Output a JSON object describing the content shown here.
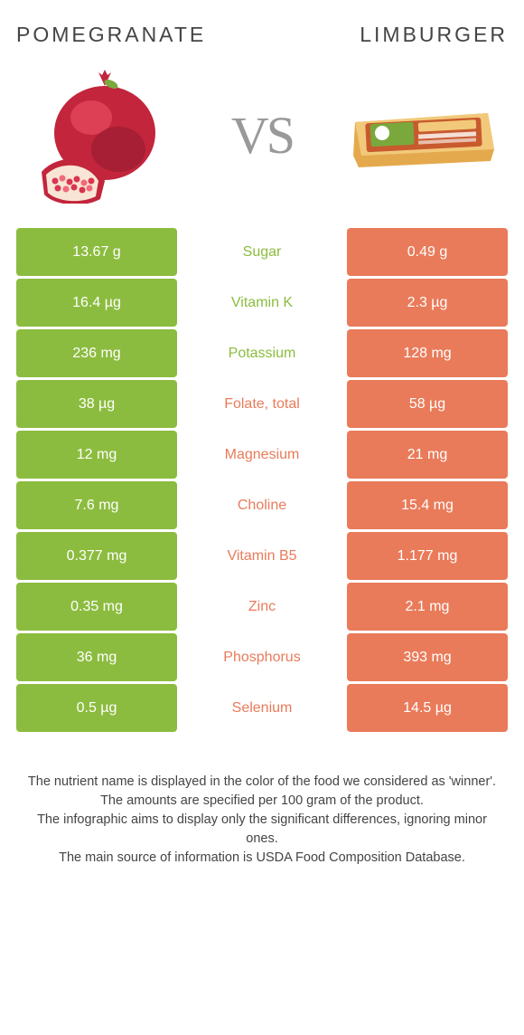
{
  "left_title": "POMEGRANATE",
  "right_title": "LIMBURGER",
  "vs": "VS",
  "colors": {
    "left_bg": "#8cbc3f",
    "right_bg": "#e97b5a",
    "row_gap": "3px"
  },
  "rows": [
    {
      "left": "13.67 g",
      "label": "Sugar",
      "right": "0.49 g",
      "winner": "left"
    },
    {
      "left": "16.4 µg",
      "label": "Vitamin K",
      "right": "2.3 µg",
      "winner": "left"
    },
    {
      "left": "236 mg",
      "label": "Potassium",
      "right": "128 mg",
      "winner": "left"
    },
    {
      "left": "38 µg",
      "label": "Folate, total",
      "right": "58 µg",
      "winner": "right"
    },
    {
      "left": "12 mg",
      "label": "Magnesium",
      "right": "21 mg",
      "winner": "right"
    },
    {
      "left": "7.6 mg",
      "label": "Choline",
      "right": "15.4 mg",
      "winner": "right"
    },
    {
      "left": "0.377 mg",
      "label": "Vitamin B5",
      "right": "1.177 mg",
      "winner": "right"
    },
    {
      "left": "0.35 mg",
      "label": "Zinc",
      "right": "2.1 mg",
      "winner": "right"
    },
    {
      "left": "36 mg",
      "label": "Phosphorus",
      "right": "393 mg",
      "winner": "right"
    },
    {
      "left": "0.5 µg",
      "label": "Selenium",
      "right": "14.5 µg",
      "winner": "right"
    }
  ],
  "footer_lines": [
    "The nutrient name is displayed in the color of the food we considered as 'winner'.",
    "The amounts are specified per 100 gram of the product.",
    "The infographic aims to display only the significant differences, ignoring minor ones.",
    "The main source of information is USDA Food Composition Database."
  ],
  "pomegranate_colors": {
    "body": "#c2253c",
    "highlight": "#e84a5f",
    "shadow": "#8a1a2c",
    "seeds": "#d93550",
    "seed_light": "#f06a7a",
    "leaf": "#7aa83c"
  },
  "limburger_colors": {
    "box": "#e5a94d",
    "box_light": "#f2c97a",
    "label_bg": "#c85a2e",
    "label_inner": "#7aa83c",
    "label_inner2": "#ffffff"
  }
}
